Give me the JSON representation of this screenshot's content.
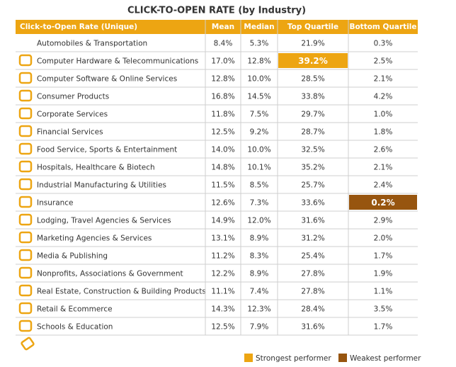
{
  "title": "CLICK-TO-OPEN RATE (by Industry)",
  "table": {
    "header": [
      "Click-to-Open Rate (Unique)",
      "Mean",
      "Median",
      "Top Quartile",
      "Bottom Quartile"
    ],
    "rows": [
      [
        "Automobiles & Transportation",
        "8.4%",
        "5.3%",
        "21.9%",
        "0.3%"
      ],
      [
        "Computer Hardware & Telecommunications",
        "17.0%",
        "12.8%",
        "39.2%",
        "2.5%"
      ],
      [
        "Computer Software & Online Services",
        "12.8%",
        "10.0%",
        "28.5%",
        "2.1%"
      ],
      [
        "Consumer Products",
        "16.8%",
        "14.5%",
        "33.8%",
        "4.2%"
      ],
      [
        "Corporate Services",
        "11.8%",
        "7.5%",
        "29.7%",
        "1.0%"
      ],
      [
        "Financial Services",
        "12.5%",
        "9.2%",
        "28.7%",
        "1.8%"
      ],
      [
        "Food Service, Sports & Entertainment",
        "14.0%",
        "10.0%",
        "32.5%",
        "2.6%"
      ],
      [
        "Hospitals, Healthcare & Biotech",
        "14.8%",
        "10.1%",
        "35.2%",
        "2.1%"
      ],
      [
        "Industrial Manufacturing & Utilities",
        "11.5%",
        "8.5%",
        "25.7%",
        "2.4%"
      ],
      [
        "Insurance",
        "12.6%",
        "7.3%",
        "33.6%",
        "0.2%"
      ],
      [
        "Lodging, Travel Agencies & Services",
        "14.9%",
        "12.0%",
        "31.6%",
        "2.9%"
      ],
      [
        "Marketing Agencies & Services",
        "13.1%",
        "8.9%",
        "31.2%",
        "2.0%"
      ],
      [
        "Media & Publishing",
        "11.2%",
        "8.3%",
        "25.4%",
        "1.7%"
      ],
      [
        "Nonprofits, Associations & Government",
        "12.2%",
        "8.9%",
        "27.8%",
        "1.9%"
      ],
      [
        "Real Estate, Construction & Building Products",
        "11.1%",
        "7.4%",
        "27.8%",
        "1.1%"
      ],
      [
        "Retail & Ecommerce",
        "14.3%",
        "12.3%",
        "28.4%",
        "3.5%"
      ],
      [
        "Schools & Education",
        "12.5%",
        "7.9%",
        "31.6%",
        "1.7%"
      ]
    ],
    "highlights": [
      {
        "row": 1,
        "col": 3,
        "legend": 0
      },
      {
        "row": 9,
        "col": 4,
        "legend": 1
      }
    ]
  },
  "legend": [
    {
      "label": "Strongest performer",
      "color": "#eda512"
    },
    {
      "label": "Weakest performer",
      "color": "#97550f"
    }
  ]
}
